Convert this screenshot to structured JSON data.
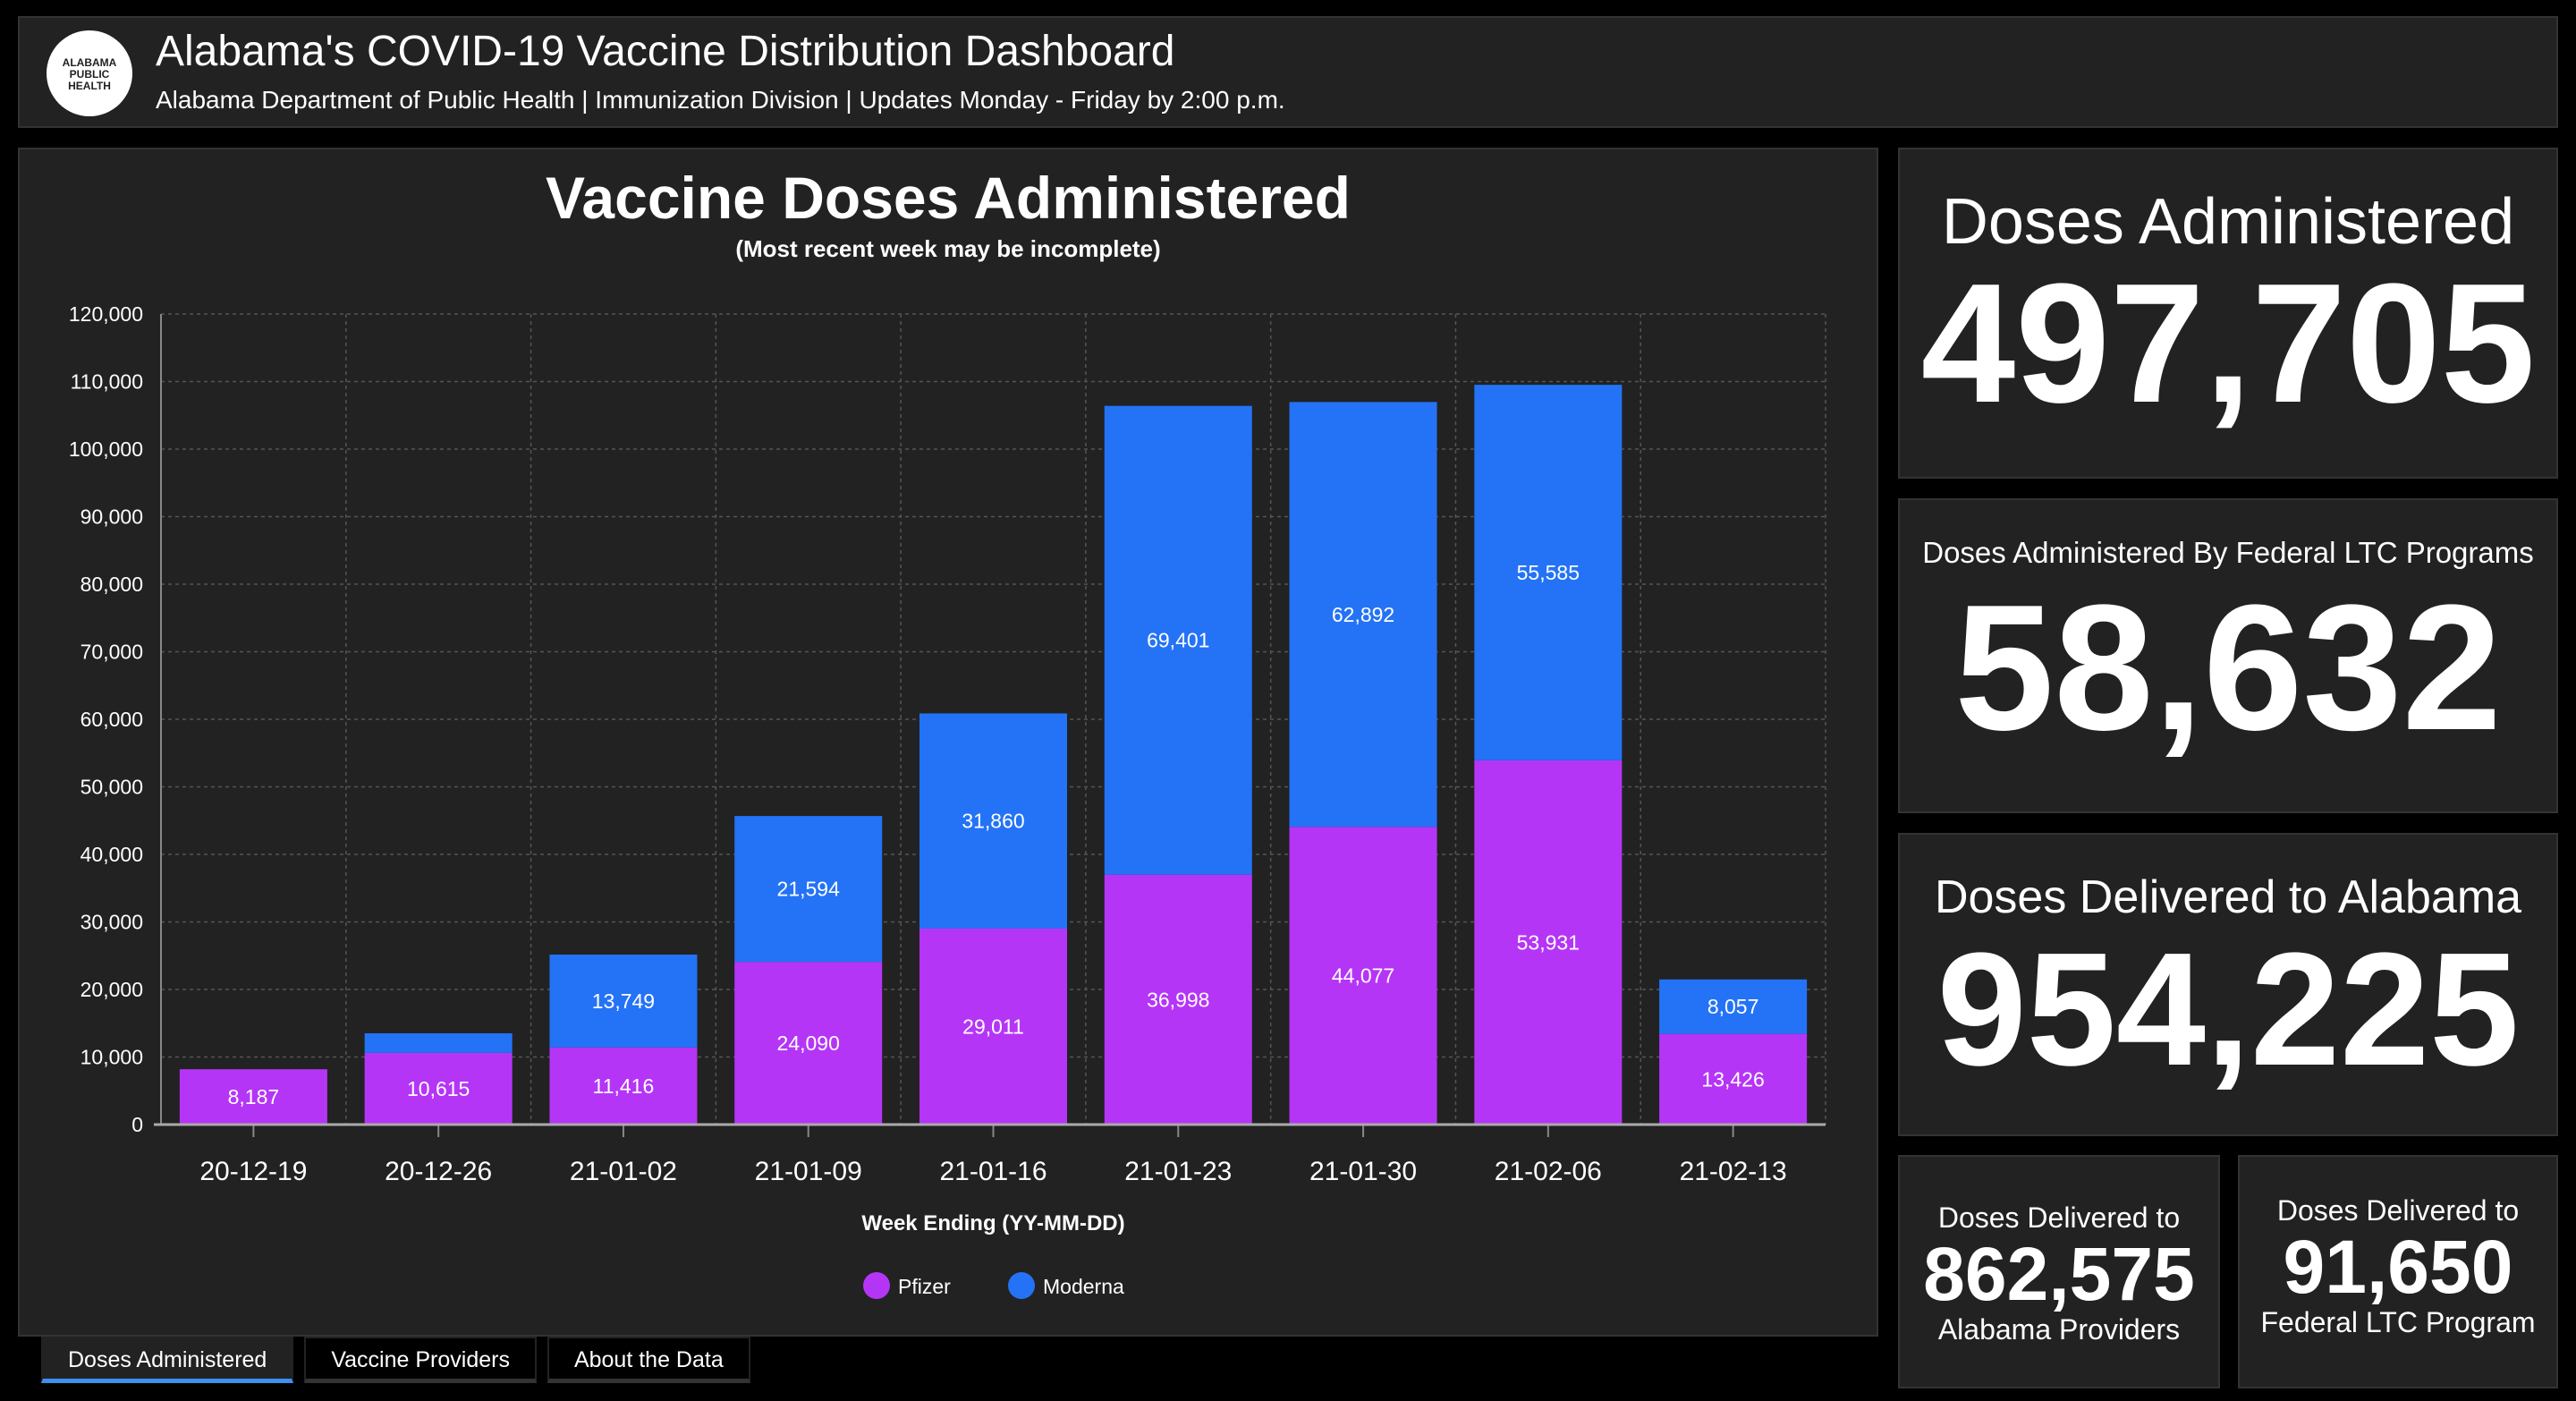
{
  "header": {
    "title": "Alabama's COVID-19 Vaccine Distribution Dashboard",
    "subtitle": "Alabama Department of Public Health | Immunization Division | Updates Monday - Friday by 2:00 p.m.",
    "logo_text": [
      "ALABAMA",
      "PUBLIC",
      "HEALTH"
    ]
  },
  "chart_data": {
    "type": "bar",
    "stacked": true,
    "title": "Vaccine Doses Administered",
    "subtitle": "(Most recent week may be incomplete)",
    "xlabel": "Week Ending (YY-MM-DD)",
    "ylabel": "",
    "ylim": [
      0,
      120000
    ],
    "yticks": [
      "0",
      "10,000",
      "20,000",
      "30,000",
      "40,000",
      "50,000",
      "60,000",
      "70,000",
      "80,000",
      "90,000",
      "100,000",
      "110,000",
      "120,000"
    ],
    "grid": true,
    "legend": "bottom",
    "categories": [
      "20-12-19",
      "20-12-26",
      "21-01-02",
      "21-01-09",
      "21-01-16",
      "21-01-23",
      "21-01-30",
      "21-02-06",
      "21-02-13"
    ],
    "series": [
      {
        "name": "Pfizer",
        "color": "#b535f6",
        "values": [
          8187,
          10615,
          11416,
          24090,
          29011,
          36998,
          44077,
          53931,
          13426
        ],
        "labels": [
          "8,187",
          "10,615",
          "11,416",
          "24,090",
          "29,011",
          "36,998",
          "44,077",
          "53,931",
          "13,426"
        ]
      },
      {
        "name": "Moderna",
        "color": "#2473f6",
        "values": [
          0,
          2900,
          13749,
          21594,
          31860,
          69401,
          62892,
          55585,
          8057
        ],
        "labels": [
          "",
          "",
          "13,749",
          "21,594",
          "31,860",
          "69,401",
          "62,892",
          "55,585",
          "8,057"
        ]
      }
    ]
  },
  "tabs": [
    {
      "label": "Doses Administered",
      "active": true
    },
    {
      "label": "Vaccine Providers"
    },
    {
      "label": "About the Data"
    }
  ],
  "cards": {
    "administered": {
      "label": "Doses Administered",
      "value": "497,705"
    },
    "federal_ltc": {
      "label": "Doses Administered By Federal LTC Programs",
      "value": "58,632"
    },
    "delivered": {
      "label": "Doses Delivered to Alabama",
      "value": "954,225"
    },
    "providers": {
      "label": "Doses Delivered to",
      "value": "862,575",
      "label2": "Alabama Providers"
    },
    "ltc_delivered": {
      "label": "Doses Delivered to",
      "value": "91,650",
      "label2": "Federal LTC Program"
    }
  }
}
